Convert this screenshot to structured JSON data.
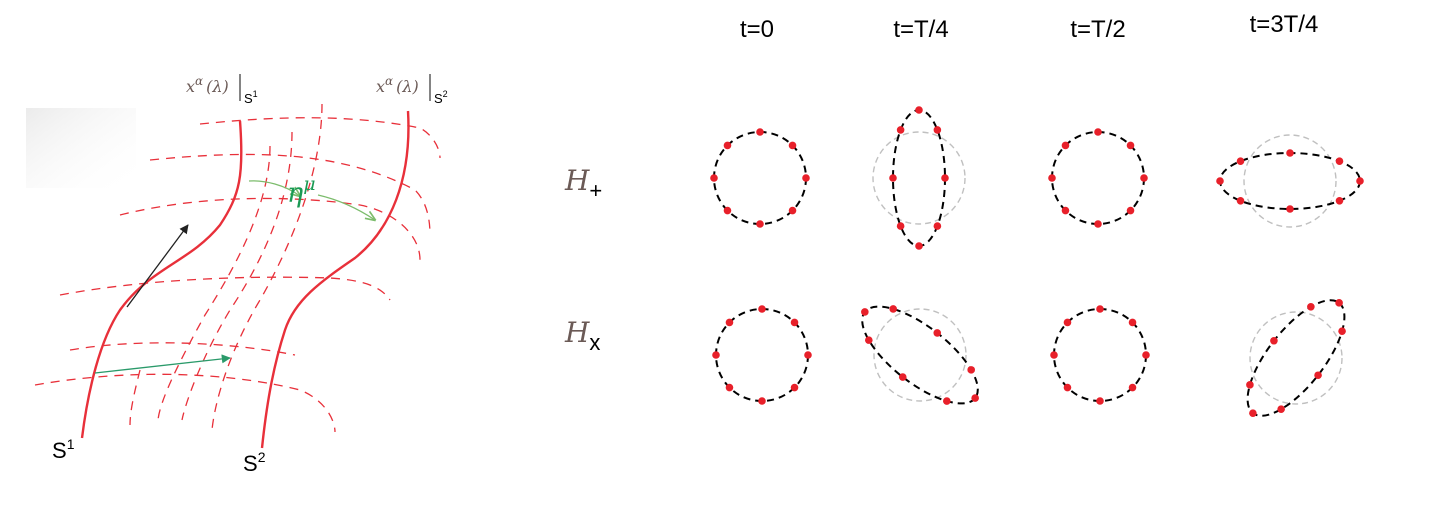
{
  "geodesics": {
    "curve_label_1": {
      "base": "x",
      "sup": "α",
      "arg": "(λ)",
      "sub_base": "S",
      "sub_sup": "1"
    },
    "curve_label_2": {
      "base": "x",
      "sup": "α",
      "arg": "(λ)",
      "sub_base": "S",
      "sub_sup": "2"
    },
    "separation": {
      "base": "η",
      "sup": "μ"
    },
    "surface_1": {
      "base": "S",
      "sup": "1"
    },
    "surface_2": {
      "base": "S",
      "sup": "2"
    }
  },
  "polarization": {
    "column_headers": [
      "t=0",
      "t=T/4",
      "t=T/2",
      "t=3T/4"
    ],
    "rows": [
      {
        "base": "H",
        "sub": "+"
      },
      {
        "base": "H",
        "sub": "x"
      }
    ]
  },
  "colors": {
    "curve": "#e8303a",
    "grid": "#e8303a",
    "particle": "#e8202a",
    "ellipse": "#000000",
    "reference_circle": "#c0c0c0",
    "separation_arrow": "#7cbc6c",
    "separation_label": "#1a9a54",
    "tangent_vector": "#222222",
    "deviation_vector": "#2a9a6a",
    "row_label": "#6b5a56"
  }
}
